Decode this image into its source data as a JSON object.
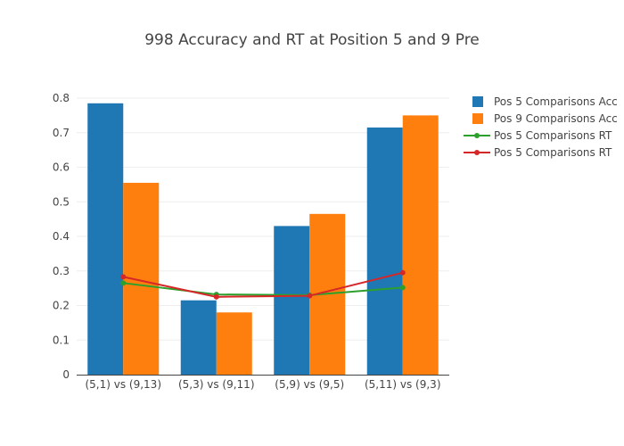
{
  "chart_data": {
    "type": "bar",
    "title": "998 Accuracy and RT at Position 5 and 9 Pre",
    "xlabel": "",
    "ylabel": "",
    "ylim": [
      0,
      0.8
    ],
    "yticks": [
      "0",
      "0.1",
      "0.2",
      "0.3",
      "0.4",
      "0.5",
      "0.6",
      "0.7",
      "0.8"
    ],
    "ytick_values": [
      0,
      0.1,
      0.2,
      0.3,
      0.4,
      0.5,
      0.6,
      0.7,
      0.8
    ],
    "categories": [
      "(5,1) vs (9,13)",
      "(5,3) vs (9,11)",
      "(5,9) vs (9,5)",
      "(5,11) vs (9,3)"
    ],
    "grid": true,
    "legend_position": "top-right",
    "series": [
      {
        "name": "Pos 5 Comparisons Acc",
        "kind": "bar",
        "color": "#1f77b4",
        "values": [
          0.785,
          0.215,
          0.43,
          0.715
        ]
      },
      {
        "name": "Pos 9 Comparisons Acc",
        "kind": "bar",
        "color": "#ff7f0e",
        "values": [
          0.555,
          0.18,
          0.465,
          0.75
        ]
      },
      {
        "name": "Pos 5 Comparisons RT",
        "kind": "line",
        "color": "#2ca02c",
        "values": [
          0.265,
          0.232,
          0.23,
          0.252
        ]
      },
      {
        "name": "Pos 5 Comparisons RT",
        "kind": "line",
        "color": "#d62728",
        "values": [
          0.283,
          0.225,
          0.228,
          0.295
        ]
      }
    ]
  }
}
